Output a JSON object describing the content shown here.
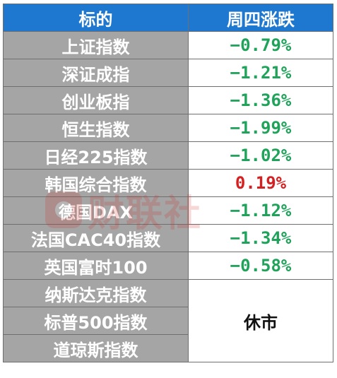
{
  "header": {
    "col_name": "标的",
    "col_change": "周四涨跌"
  },
  "rows": [
    {
      "name": "上证指数",
      "change": "−0.79%",
      "direction": "down"
    },
    {
      "name": "深证成指",
      "change": "−1.21%",
      "direction": "down"
    },
    {
      "name": "创业板指",
      "change": "−1.36%",
      "direction": "down"
    },
    {
      "name": "恒生指数",
      "change": "−1.99%",
      "direction": "down"
    },
    {
      "name": "日经225指数",
      "change": "−1.02%",
      "direction": "down"
    },
    {
      "name": "韩国综合指数",
      "change": "0.19%",
      "direction": "up"
    },
    {
      "name": "德国DAX",
      "change": "−1.12%",
      "direction": "down"
    },
    {
      "name": "法国CAC40指数",
      "change": "−1.34%",
      "direction": "down"
    },
    {
      "name": "英国富时100",
      "change": "−0.58%",
      "direction": "down"
    },
    {
      "name": "纳斯达克指数"
    },
    {
      "name": "标普500指数"
    },
    {
      "name": "道琼斯指数"
    }
  ],
  "closed_label": "休市",
  "watermark": {
    "text": "财联社"
  },
  "colors": {
    "header_bg": "#1f78d0",
    "name_bg": "#a5a5a5",
    "down": "#1fa35a",
    "up": "#d42020"
  }
}
